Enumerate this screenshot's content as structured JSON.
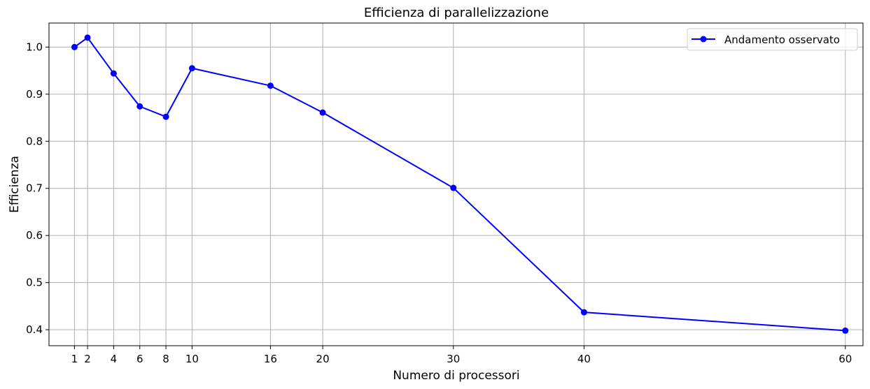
{
  "chart_data": {
    "type": "line",
    "title": "Efficienza di parallelizzazione",
    "xlabel": "Numero di processori",
    "ylabel": "Efficienza",
    "x": [
      1,
      2,
      4,
      6,
      8,
      10,
      16,
      20,
      30,
      40,
      60
    ],
    "x_tick_labels": [
      "1",
      "2",
      "4",
      "6",
      "8",
      "10",
      "16",
      "20",
      "30",
      "40",
      "60"
    ],
    "y_ticks": [
      0.4,
      0.5,
      0.6,
      0.7,
      0.8,
      0.9,
      1.0
    ],
    "y_tick_labels": [
      "0.4",
      "0.5",
      "0.6",
      "0.7",
      "0.8",
      "0.9",
      "1.0"
    ],
    "xlim": [
      -0.95,
      61.35
    ],
    "ylim": [
      0.366,
      1.051
    ],
    "grid": true,
    "legend_position": "top-right",
    "series": [
      {
        "name": "Andamento osservato",
        "color": "#0000ff",
        "marker": "circle",
        "values": [
          1.0,
          1.02,
          0.944,
          0.874,
          0.852,
          0.955,
          0.918,
          0.861,
          0.701,
          0.437,
          0.398
        ]
      }
    ]
  }
}
